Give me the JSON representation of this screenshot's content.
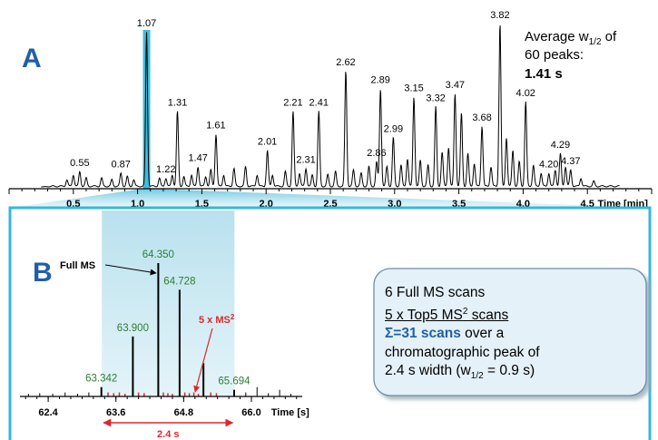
{
  "chart_data": [
    {
      "panel": "A",
      "type": "line",
      "xlabel": "Time [min]",
      "xlim": [
        0.0,
        5.0
      ],
      "x_ticks": [
        "0.5",
        "1.0",
        "1.5",
        "2.0",
        "2.5",
        "3.0",
        "3.5",
        "4.0",
        "4.5"
      ],
      "highlighted_peak": 1.07,
      "annotation": {
        "line1": "Average w",
        "sub": "1/2",
        "line1_end": " of",
        "line2": "60 peaks:",
        "line3": "1.41 s"
      },
      "peaks": [
        {
          "label": "0.55",
          "rt": 0.55,
          "height": 0.09
        },
        {
          "label": "0.87",
          "rt": 0.87,
          "height": 0.08
        },
        {
          "label": "1.07",
          "rt": 1.07,
          "height": 0.95
        },
        {
          "label": "1.22",
          "rt": 1.22,
          "height": 0.05
        },
        {
          "label": "1.31",
          "rt": 1.31,
          "height": 0.46
        },
        {
          "label": "1.47",
          "rt": 1.47,
          "height": 0.12
        },
        {
          "label": "1.61",
          "rt": 1.61,
          "height": 0.32
        },
        {
          "label": "2.01",
          "rt": 2.01,
          "height": 0.22
        },
        {
          "label": "2.21",
          "rt": 2.21,
          "height": 0.46
        },
        {
          "label": "2.31",
          "rt": 2.31,
          "height": 0.11
        },
        {
          "label": "2.41",
          "rt": 2.41,
          "height": 0.46
        },
        {
          "label": "2.62",
          "rt": 2.62,
          "height": 0.71
        },
        {
          "label": "2.86",
          "rt": 2.86,
          "height": 0.15
        },
        {
          "label": "2.89",
          "rt": 2.89,
          "height": 0.6
        },
        {
          "label": "2.99",
          "rt": 2.99,
          "height": 0.3
        },
        {
          "label": "3.15",
          "rt": 3.15,
          "height": 0.55
        },
        {
          "label": "3.32",
          "rt": 3.32,
          "height": 0.49
        },
        {
          "label": "3.47",
          "rt": 3.47,
          "height": 0.57
        },
        {
          "label": "3.68",
          "rt": 3.68,
          "height": 0.37
        },
        {
          "label": "3.82",
          "rt": 3.82,
          "height": 1.0
        },
        {
          "label": "4.02",
          "rt": 4.02,
          "height": 0.52
        },
        {
          "label": "4.20",
          "rt": 4.2,
          "height": 0.08
        },
        {
          "label": "4.29",
          "rt": 4.29,
          "height": 0.2
        },
        {
          "label": "4.37",
          "rt": 4.37,
          "height": 0.1
        }
      ],
      "minor_peaks": [
        {
          "rt": 0.45,
          "height": 0.04
        },
        {
          "rt": 0.5,
          "height": 0.07
        },
        {
          "rt": 0.6,
          "height": 0.05
        },
        {
          "rt": 0.72,
          "height": 0.05
        },
        {
          "rt": 0.8,
          "height": 0.04
        },
        {
          "rt": 0.92,
          "height": 0.06
        },
        {
          "rt": 0.97,
          "height": 0.04
        },
        {
          "rt": 1.17,
          "height": 0.05
        },
        {
          "rt": 1.27,
          "height": 0.07
        },
        {
          "rt": 1.36,
          "height": 0.06
        },
        {
          "rt": 1.42,
          "height": 0.07
        },
        {
          "rt": 1.53,
          "height": 0.06
        },
        {
          "rt": 1.57,
          "height": 0.1
        },
        {
          "rt": 1.67,
          "height": 0.07
        },
        {
          "rt": 1.75,
          "height": 0.11
        },
        {
          "rt": 1.84,
          "height": 0.12
        },
        {
          "rt": 1.93,
          "height": 0.07
        },
        {
          "rt": 2.05,
          "height": 0.07
        },
        {
          "rt": 2.15,
          "height": 0.09
        },
        {
          "rt": 2.26,
          "height": 0.08
        },
        {
          "rt": 2.36,
          "height": 0.07
        },
        {
          "rt": 2.48,
          "height": 0.07
        },
        {
          "rt": 2.54,
          "height": 0.09
        },
        {
          "rt": 2.68,
          "height": 0.1
        },
        {
          "rt": 2.74,
          "height": 0.08
        },
        {
          "rt": 2.8,
          "height": 0.12
        },
        {
          "rt": 2.94,
          "height": 0.12
        },
        {
          "rt": 3.05,
          "height": 0.13
        },
        {
          "rt": 3.1,
          "height": 0.17
        },
        {
          "rt": 3.2,
          "height": 0.16
        },
        {
          "rt": 3.26,
          "height": 0.13
        },
        {
          "rt": 3.37,
          "height": 0.21
        },
        {
          "rt": 3.42,
          "height": 0.24
        },
        {
          "rt": 3.52,
          "height": 0.45
        },
        {
          "rt": 3.57,
          "height": 0.2
        },
        {
          "rt": 3.62,
          "height": 0.14
        },
        {
          "rt": 3.75,
          "height": 0.12
        },
        {
          "rt": 3.87,
          "height": 0.3
        },
        {
          "rt": 3.92,
          "height": 0.22
        },
        {
          "rt": 3.97,
          "height": 0.15
        },
        {
          "rt": 4.08,
          "height": 0.13
        },
        {
          "rt": 4.14,
          "height": 0.08
        },
        {
          "rt": 4.25,
          "height": 0.1
        },
        {
          "rt": 4.33,
          "height": 0.12
        },
        {
          "rt": 4.45,
          "height": 0.05
        },
        {
          "rt": 4.55,
          "height": 0.03
        }
      ]
    },
    {
      "panel": "B",
      "type": "bar",
      "xlabel": "Time [s]",
      "xlim": [
        61.9,
        66.9
      ],
      "x_ticks": [
        "62.4",
        "63.6",
        "64.8",
        "66.0"
      ],
      "x_tick_values": [
        62.4,
        63.6,
        64.8,
        66.0
      ],
      "peak_window": [
        63.35,
        65.7
      ],
      "width_label": "2.4 s",
      "full_ms_label": "Full MS",
      "ms2_label": "5 x MS",
      "ms2_sup": "2",
      "full_ms_scans": [
        {
          "time": 63.342,
          "label": "63.342",
          "intensity": 0.07
        },
        {
          "time": 63.9,
          "label": "63.900",
          "intensity": 0.45
        },
        {
          "time": 64.35,
          "label": "64.350",
          "intensity": 1.0
        },
        {
          "time": 64.728,
          "label": "64.728",
          "intensity": 0.8
        },
        {
          "time": 65.15,
          "label": "",
          "intensity": 0.25
        },
        {
          "time": 65.694,
          "label": "65.694",
          "intensity": 0.05
        }
      ],
      "ms2_scans": [
        {
          "time": 63.46,
          "intensity": 0.03
        },
        {
          "time": 63.56,
          "intensity": 0.025
        },
        {
          "time": 63.66,
          "intensity": 0.03
        },
        {
          "time": 63.76,
          "intensity": 0.02
        },
        {
          "time": 64.0,
          "intensity": 0.03
        },
        {
          "time": 64.1,
          "intensity": 0.025
        },
        {
          "time": 64.44,
          "intensity": 0.03
        },
        {
          "time": 64.52,
          "intensity": 0.025
        },
        {
          "time": 64.6,
          "intensity": 0.02
        },
        {
          "time": 64.82,
          "intensity": 0.03
        },
        {
          "time": 64.9,
          "intensity": 0.025
        },
        {
          "time": 64.98,
          "intensity": 0.03
        },
        {
          "time": 65.06,
          "intensity": 0.02
        },
        {
          "time": 65.28,
          "intensity": 0.03
        },
        {
          "time": 65.38,
          "intensity": 0.025
        }
      ],
      "background_scans": [
        {
          "time": 62.05,
          "intensity": 0.02
        },
        {
          "time": 62.25,
          "intensity": 0.025
        },
        {
          "time": 62.48,
          "intensity": 0.02
        },
        {
          "time": 62.7,
          "intensity": 0.03
        },
        {
          "time": 62.92,
          "intensity": 0.02
        },
        {
          "time": 63.12,
          "intensity": 0.03
        },
        {
          "time": 65.9,
          "intensity": 0.03
        },
        {
          "time": 66.1,
          "intensity": 0.07
        },
        {
          "time": 66.3,
          "intensity": 0.025
        },
        {
          "time": 66.5,
          "intensity": 0.05
        },
        {
          "time": 66.7,
          "intensity": 0.02
        }
      ]
    }
  ],
  "colors": {
    "panel_letter": "#1f5fa8",
    "highlight": "#2bb6d6",
    "frame": "#35b7d8",
    "ms_label": "#2e7d32",
    "ms2_accent": "#e0262b",
    "box_fill": "#e4f1f8",
    "box_border": "#6b8fa8"
  },
  "panel_labels": {
    "a": "A",
    "b": "B"
  },
  "summary_box": {
    "line1": "6 Full MS scans",
    "line2_pre": "5 x Top5 MS",
    "line2_sup": "2",
    "line2_post": " scans",
    "line3_bold": "Σ=31 scans",
    "line3_rest": " over a",
    "line4": "chromatographic peak of",
    "line5_pre": "2.4 s width (w",
    "line5_sub": "1/2",
    "line5_post": " = 0.9 s)"
  }
}
